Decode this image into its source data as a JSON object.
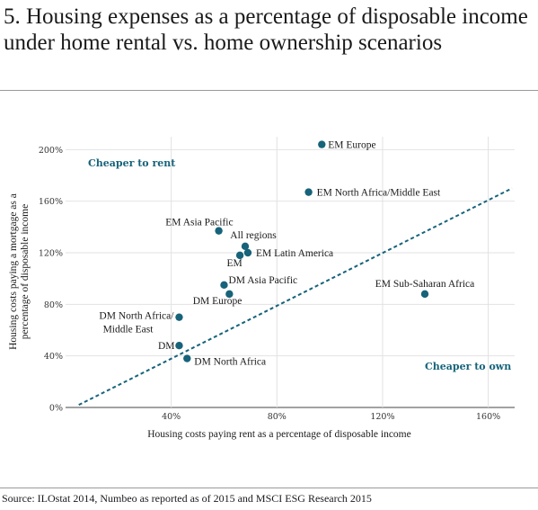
{
  "title": "5. Housing expenses as a percentage of disposable income under home rental vs. home ownership scenarios",
  "source": "Source: ILOstat 2014, Numbeo as reported as of 2015 and MSCI ESG Research 2015",
  "colors": {
    "accent": "#16637a",
    "grid": "#e2e2e2"
  },
  "chart_data": {
    "type": "scatter",
    "title": "5. Housing expenses as a percentage of disposable income under home rental vs. home ownership scenarios",
    "xlabel": "Housing costs paying rent as a percentage of disposable income",
    "ylabel": "Housing costs paying a mortgage as a percentage of disposable income",
    "xlim": [
      0,
      170
    ],
    "ylim": [
      0,
      210
    ],
    "x_ticks": [
      40,
      80,
      120,
      160
    ],
    "x_tick_labels": [
      "40%",
      "80%",
      "120%",
      "160%"
    ],
    "y_ticks": [
      0,
      40,
      80,
      120,
      160,
      200
    ],
    "y_tick_labels": [
      "0%",
      "40%",
      "80%",
      "120%",
      "160%",
      "200%"
    ],
    "grid": true,
    "points": [
      {
        "name": "EM Europe",
        "x": 97,
        "y": 204
      },
      {
        "name": "EM North Africa/Middle East",
        "x": 92,
        "y": 167
      },
      {
        "name": "EM Asia Pacific",
        "x": 58,
        "y": 137
      },
      {
        "name": "All regions",
        "x": 68,
        "y": 125
      },
      {
        "name": "EM Latin America",
        "x": 69,
        "y": 120
      },
      {
        "name": "EM",
        "x": 66,
        "y": 118
      },
      {
        "name": "DM Asia Pacific",
        "x": 60,
        "y": 95
      },
      {
        "name": "DM Europe",
        "x": 62,
        "y": 88
      },
      {
        "name": "DM North Africa/ Middle East",
        "x": 43,
        "y": 70
      },
      {
        "name": "DM",
        "x": 43,
        "y": 48
      },
      {
        "name": "DM North Africa",
        "x": 46,
        "y": 38
      },
      {
        "name": "EM Sub-Saharan Africa",
        "x": 136,
        "y": 88
      }
    ],
    "reference_line": {
      "x": [
        5,
        169
      ],
      "y": [
        2,
        170
      ]
    },
    "annotations": [
      "Cheaper to rent",
      "Cheaper to own"
    ]
  }
}
